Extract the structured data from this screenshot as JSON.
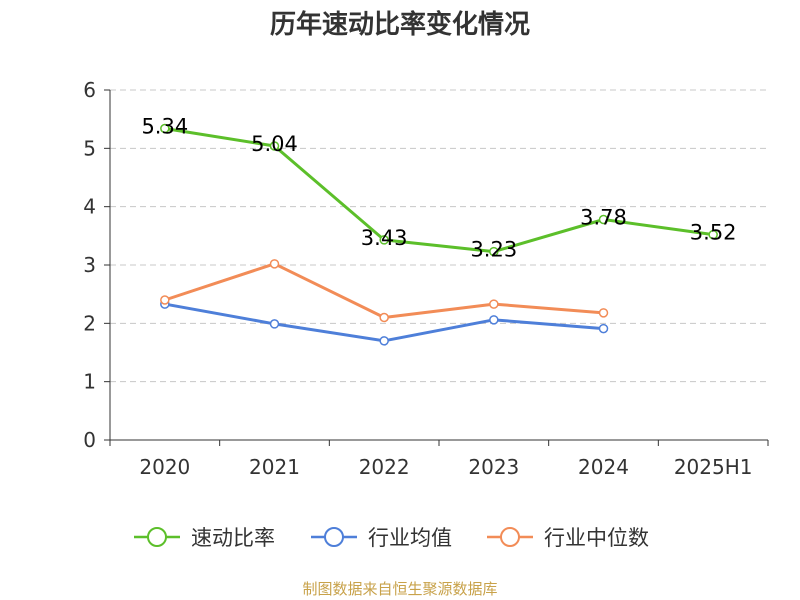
{
  "chart_data": {
    "type": "line",
    "title": "历年速动比率变化情况",
    "categories": [
      "2020",
      "2021",
      "2022",
      "2023",
      "2024",
      "2025H1"
    ],
    "ylim": [
      0,
      6
    ],
    "yticks": [
      0,
      1,
      2,
      3,
      4,
      5,
      6
    ],
    "grid": true,
    "legend_position": "bottom",
    "series": [
      {
        "name": "速动比率",
        "color": "#5cbf2a",
        "values": [
          5.34,
          5.04,
          3.43,
          3.23,
          3.78,
          3.52
        ],
        "labels": [
          "5.34",
          "5.04",
          "3.43",
          "3.23",
          "3.78",
          "3.52"
        ]
      },
      {
        "name": "行业均值",
        "color": "#4e7fd9",
        "values": [
          2.33,
          1.99,
          1.7,
          2.06,
          1.91,
          null
        ]
      },
      {
        "name": "行业中位数",
        "color": "#f28c57",
        "values": [
          2.4,
          3.02,
          2.1,
          2.33,
          2.18,
          null
        ]
      }
    ]
  },
  "source": {
    "text": "制图数据来自恒生聚源数据库",
    "color": "#c8a24a"
  }
}
